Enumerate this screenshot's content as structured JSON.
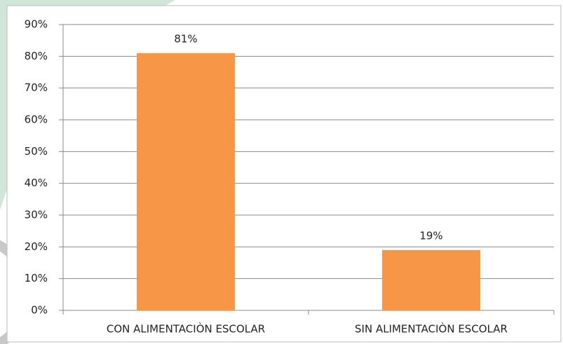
{
  "chart_data": {
    "type": "bar",
    "categories": [
      "CON ALIMENTACIÒN ESCOLAR",
      "SIN ALIMENTACIÒN ESCOLAR"
    ],
    "values": [
      81,
      19
    ],
    "value_labels": [
      "81%",
      "19%"
    ],
    "color": "#f79646",
    "ylim": [
      0,
      90
    ],
    "yticks": [
      {
        "value": 0,
        "label": "0%"
      },
      {
        "value": 10,
        "label": "10%"
      },
      {
        "value": 20,
        "label": "20%"
      },
      {
        "value": 30,
        "label": "30%"
      },
      {
        "value": 40,
        "label": "40%"
      },
      {
        "value": 50,
        "label": "50%"
      },
      {
        "value": 60,
        "label": "60%"
      },
      {
        "value": 70,
        "label": "70%"
      },
      {
        "value": 80,
        "label": "80%"
      },
      {
        "value": 90,
        "label": "90%"
      }
    ],
    "grid": true
  }
}
